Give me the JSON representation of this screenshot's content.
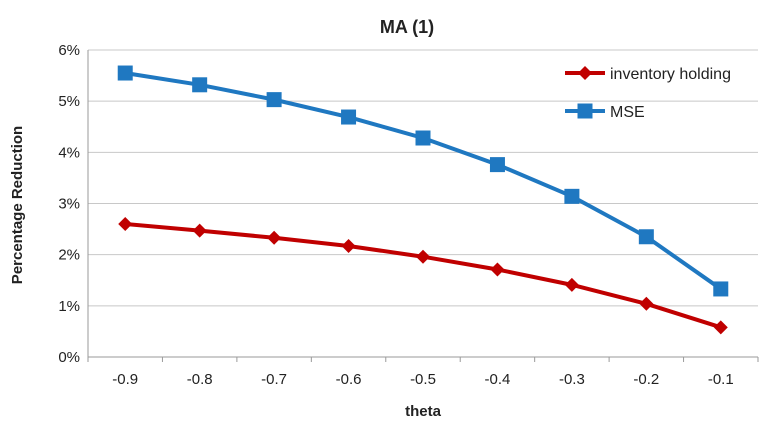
{
  "chart_data": {
    "type": "line",
    "title": "MA (1)",
    "xlabel": "theta",
    "ylabel": "Percentage Reduction",
    "categories": [
      "-0.9",
      "-0.8",
      "-0.7",
      "-0.6",
      "-0.5",
      "-0.4",
      "-0.3",
      "-0.2",
      "-0.1"
    ],
    "ylim": [
      0,
      6
    ],
    "yticks": [
      "0%",
      "1%",
      "2%",
      "3%",
      "4%",
      "5%",
      "6%"
    ],
    "grid": true,
    "legend_position": "top-right",
    "series": [
      {
        "name": "inventory holding",
        "color": "#c00000",
        "marker": "diamond",
        "values": [
          2.6,
          2.47,
          2.33,
          2.17,
          1.96,
          1.71,
          1.41,
          1.04,
          0.58
        ]
      },
      {
        "name": "MSE",
        "color": "#1f78c1",
        "marker": "square",
        "values": [
          5.55,
          5.32,
          5.03,
          4.69,
          4.28,
          3.76,
          3.14,
          2.35,
          1.33
        ]
      }
    ]
  }
}
